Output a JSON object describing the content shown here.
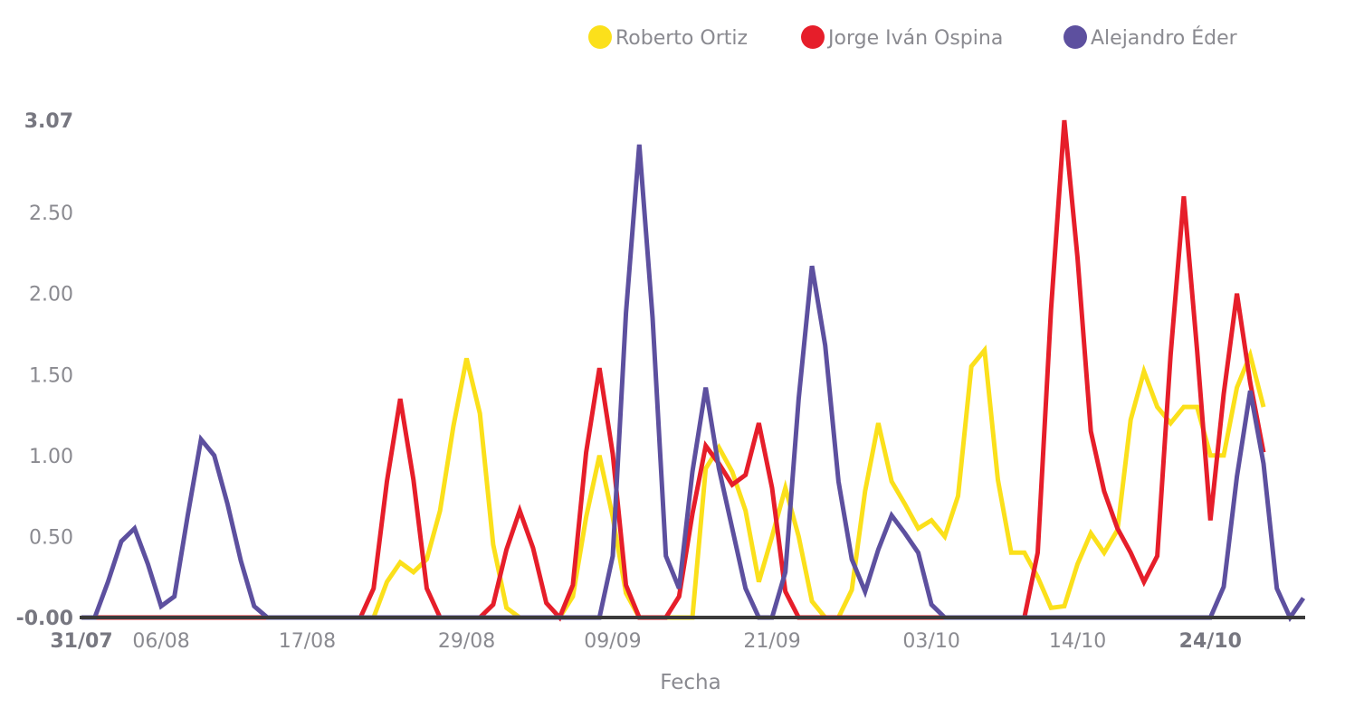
{
  "chart_data": {
    "type": "line",
    "title": "",
    "xlabel": "Fecha",
    "ylabel": "",
    "ylim": [
      0,
      3.07
    ],
    "grid": false,
    "legend_position": "top-right",
    "y_ticks": [
      {
        "value": 0,
        "label": "-0.00",
        "bold": true
      },
      {
        "value": 0.5,
        "label": "0.50",
        "bold": false
      },
      {
        "value": 1.0,
        "label": "1.00",
        "bold": false
      },
      {
        "value": 1.5,
        "label": "1.50",
        "bold": false
      },
      {
        "value": 2.0,
        "label": "2.00",
        "bold": false
      },
      {
        "value": 2.5,
        "label": "2.50",
        "bold": false
      },
      {
        "value": 3.07,
        "label": "3.07",
        "bold": true
      }
    ],
    "x_ticks": [
      {
        "index": 0,
        "label": "31/07",
        "bold": true
      },
      {
        "index": 6,
        "label": "06/08",
        "bold": false
      },
      {
        "index": 17,
        "label": "17/08",
        "bold": false
      },
      {
        "index": 29,
        "label": "29/08",
        "bold": false
      },
      {
        "index": 40,
        "label": "09/09",
        "bold": false
      },
      {
        "index": 52,
        "label": "21/09",
        "bold": false
      },
      {
        "index": 64,
        "label": "03/10",
        "bold": false
      },
      {
        "index": 75,
        "label": "14/10",
        "bold": false
      },
      {
        "index": 85,
        "label": "24/10",
        "bold": true
      }
    ],
    "x_start": "31/07",
    "x_end": "24/10",
    "series": [
      {
        "name": "Roberto Ortiz",
        "color": "#fbe01b",
        "values": [
          0,
          0,
          0,
          0,
          0,
          0,
          0,
          0,
          0,
          0,
          0,
          0,
          0,
          0,
          0,
          0,
          0,
          0,
          0,
          0,
          0,
          0,
          0,
          0.22,
          0.34,
          0.28,
          0.36,
          0.66,
          1.18,
          1.6,
          1.26,
          0.45,
          0.06,
          0,
          0,
          0,
          0,
          0.13,
          0.62,
          1.0,
          0.62,
          0.15,
          0,
          0,
          0,
          0,
          0,
          0.92,
          1.05,
          0.9,
          0.66,
          0.22,
          0.5,
          0.8,
          0.5,
          0.1,
          0,
          0,
          0.17,
          0.78,
          1.2,
          0.84,
          0.7,
          0.55,
          0.6,
          0.5,
          0.75,
          1.55,
          1.65,
          0.85,
          0.4,
          0.4,
          0.25,
          0.06,
          0.07,
          0.33,
          0.52,
          0.4,
          0.54,
          1.22,
          1.52,
          1.3,
          1.2,
          1.3,
          1.3,
          1.0,
          1.0,
          1.42,
          1.62,
          1.3
        ]
      },
      {
        "name": "Jorge Iván Ospina",
        "color": "#e61e2a",
        "values": [
          0,
          0,
          0,
          0,
          0,
          0,
          0,
          0,
          0,
          0,
          0,
          0,
          0,
          0,
          0,
          0,
          0,
          0,
          0,
          0,
          0,
          0,
          0.18,
          0.84,
          1.35,
          0.85,
          0.18,
          0,
          0,
          0,
          0,
          0.08,
          0.42,
          0.66,
          0.43,
          0.09,
          0,
          0.2,
          1.02,
          1.54,
          1.01,
          0.2,
          0,
          0,
          0,
          0.13,
          0.64,
          1.06,
          0.95,
          0.82,
          0.88,
          1.2,
          0.8,
          0.16,
          0,
          0,
          0,
          0,
          0,
          0,
          0,
          0,
          0,
          0,
          0,
          0,
          0,
          0,
          0,
          0,
          0,
          0,
          0.4,
          1.9,
          3.07,
          2.22,
          1.15,
          0.78,
          0.55,
          0.4,
          0.22,
          0.38,
          1.62,
          2.6,
          1.65,
          0.6,
          1.38,
          2.0,
          1.45,
          1.02
        ]
      },
      {
        "name": "Alejandro Éder",
        "color": "#5d509f",
        "values": [
          0,
          0,
          0.22,
          0.47,
          0.55,
          0.33,
          0.07,
          0.13,
          0.63,
          1.1,
          1.0,
          0.7,
          0.35,
          0.07,
          0,
          0,
          0,
          0,
          0,
          0,
          0,
          0,
          0,
          0,
          0,
          0,
          0,
          0,
          0,
          0,
          0,
          0,
          0,
          0,
          0,
          0,
          0,
          0,
          0,
          0,
          0.38,
          1.88,
          2.92,
          1.85,
          0.38,
          0.18,
          0.9,
          1.42,
          0.92,
          0.55,
          0.18,
          0,
          0,
          0.28,
          1.35,
          2.17,
          1.68,
          0.84,
          0.36,
          0.16,
          0.42,
          0.63,
          0.52,
          0.4,
          0.08,
          0,
          0,
          0,
          0,
          0,
          0,
          0,
          0,
          0,
          0,
          0,
          0,
          0,
          0,
          0,
          0,
          0,
          0,
          0,
          0,
          0,
          0.19,
          0.87,
          1.4,
          0.95,
          0.18,
          0,
          0.12
        ]
      }
    ]
  }
}
